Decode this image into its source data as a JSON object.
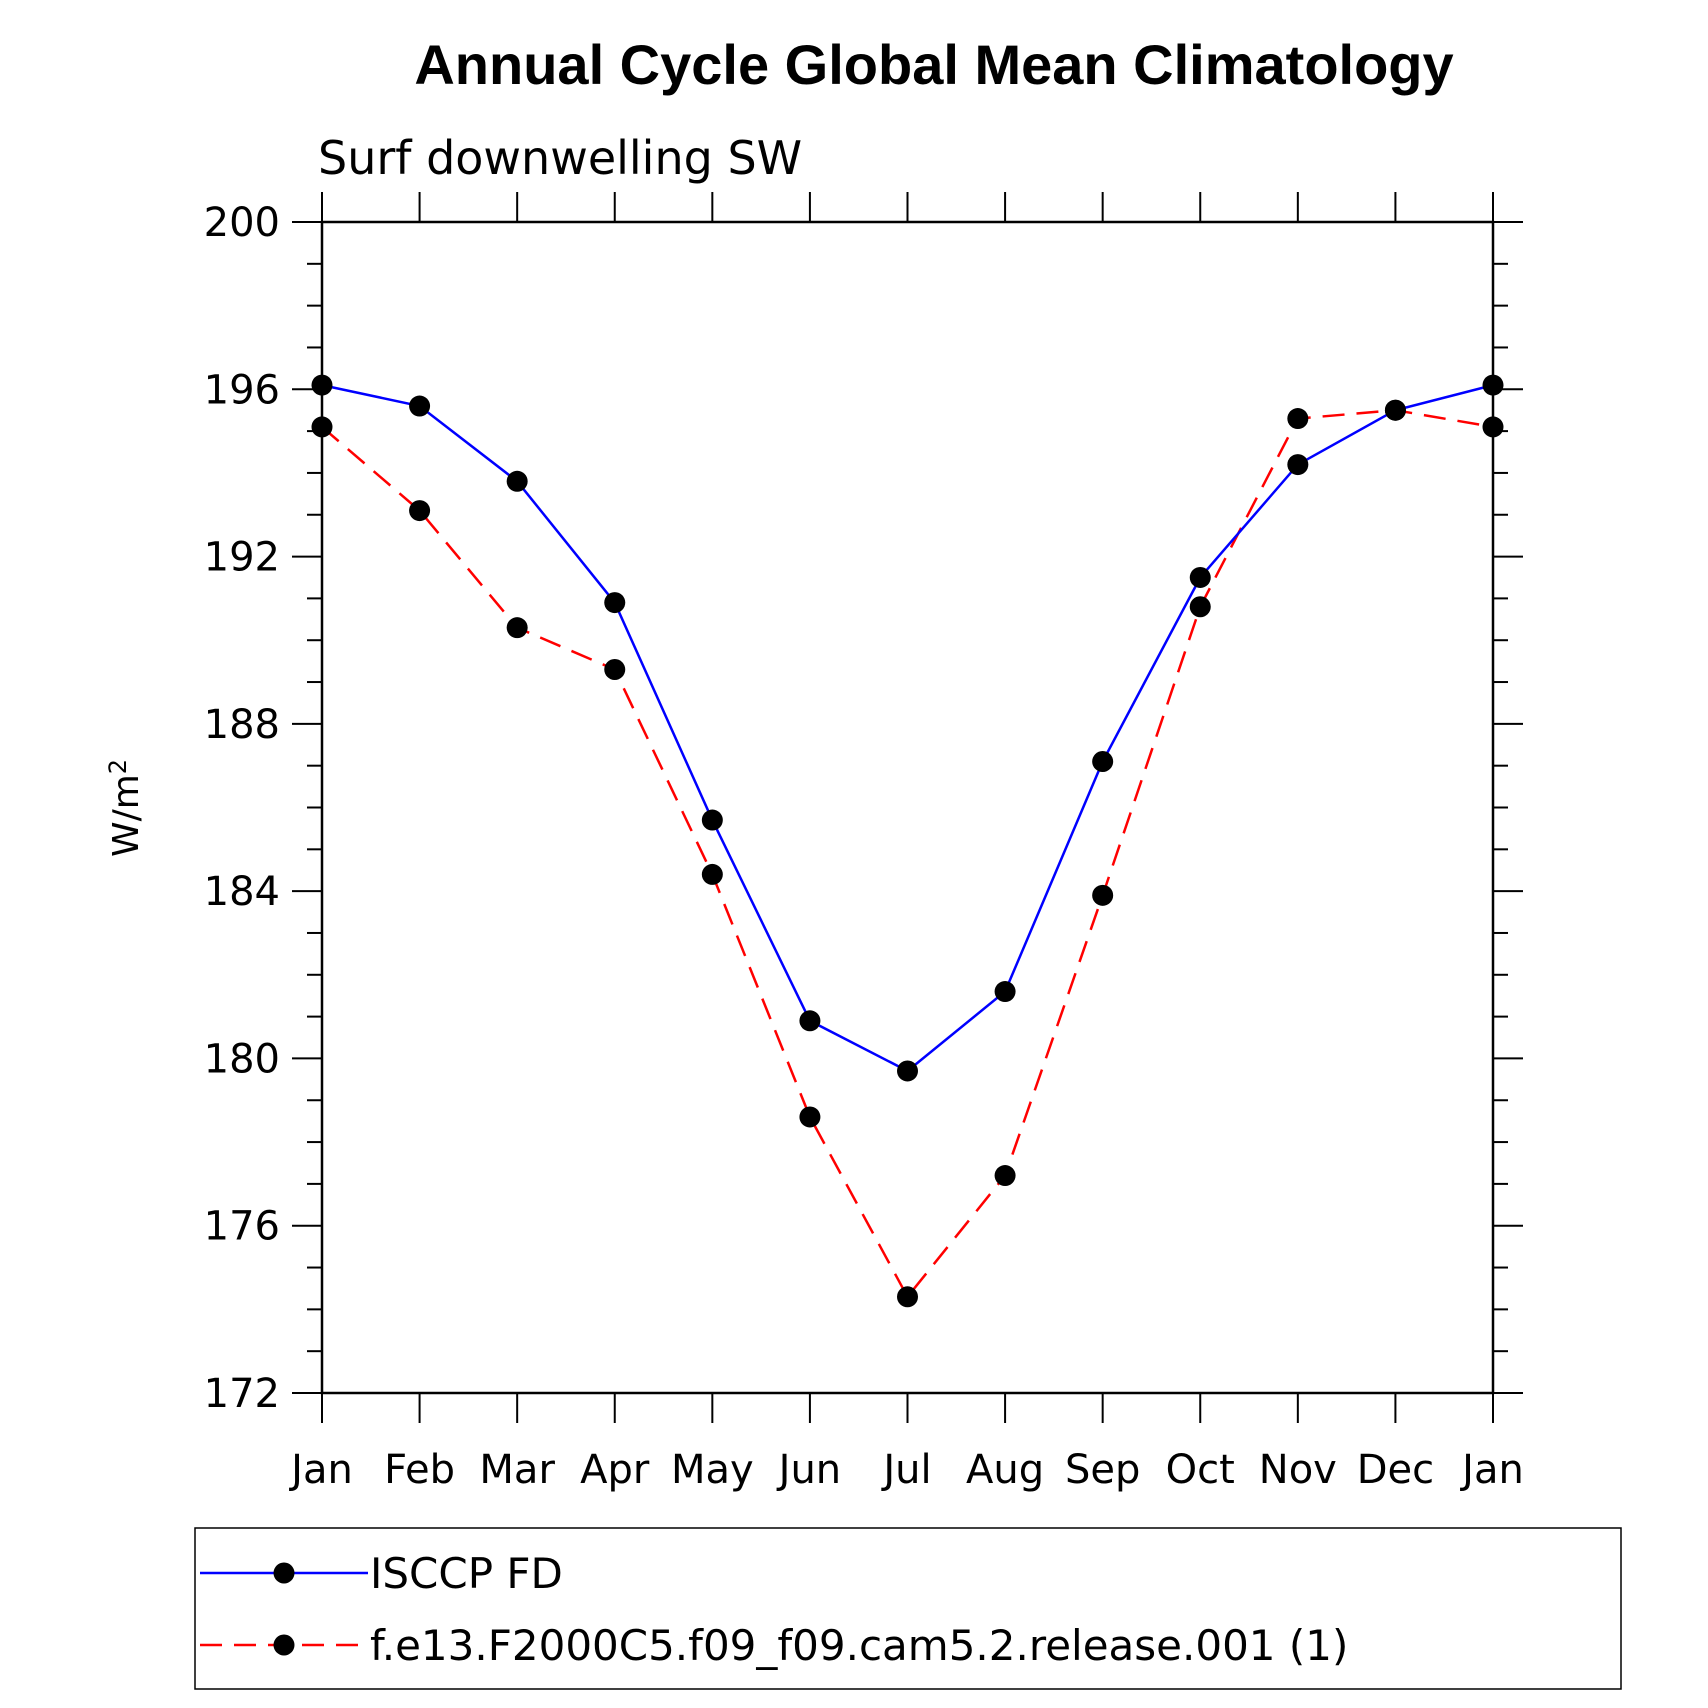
{
  "chart_data": {
    "type": "line",
    "title": "Annual Cycle Global Mean Climatology",
    "subtitle": "Surf downwelling SW",
    "ylabel": "W/m",
    "ylabel_sup": "2",
    "xlabel": "",
    "categories": [
      "Jan",
      "Feb",
      "Mar",
      "Apr",
      "May",
      "Jun",
      "Jul",
      "Aug",
      "Sep",
      "Oct",
      "Nov",
      "Dec",
      "Jan"
    ],
    "ylim": [
      172,
      200
    ],
    "yticks": [
      172,
      176,
      180,
      184,
      188,
      192,
      196,
      200
    ],
    "y_minor_step": 1,
    "grid": false,
    "legend_position": "bottom",
    "series": [
      {
        "name": "ISCCP FD",
        "color": "#0000ff",
        "dash": "solid",
        "marker": "filled-circle",
        "values": [
          196.1,
          195.6,
          193.8,
          190.9,
          185.7,
          180.9,
          179.7,
          181.6,
          187.1,
          191.5,
          194.2,
          195.5,
          196.1
        ]
      },
      {
        "name": "f.e13.F2000C5.f09_f09.cam5.2.release.001 (1)",
        "color": "#ff0000",
        "dash": "dashed",
        "marker": "filled-circle",
        "values": [
          195.1,
          193.1,
          190.3,
          189.3,
          184.4,
          178.6,
          174.3,
          177.2,
          183.9,
          190.8,
          195.3,
          195.5,
          195.1
        ]
      }
    ]
  }
}
